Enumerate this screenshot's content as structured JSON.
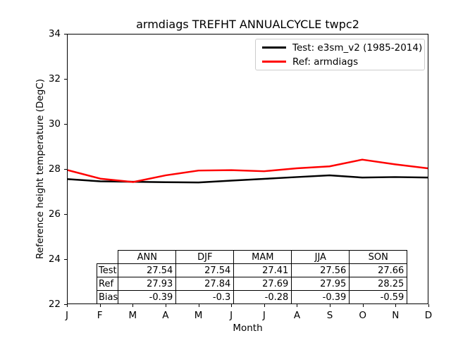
{
  "title": "armdiags TREFHT ANNUALCYCLE twpc2",
  "axes": {
    "xlabel": "Month",
    "ylabel": "Reference height temperature (DegC)",
    "ytick_labels": [
      "22",
      "24",
      "26",
      "28",
      "30",
      "32",
      "34"
    ],
    "ytick_values": [
      22,
      24,
      26,
      28,
      30,
      32,
      34
    ],
    "xtick_labels": [
      "J",
      "F",
      "M",
      "A",
      "M",
      "J",
      "J",
      "A",
      "S",
      "O",
      "N",
      "D"
    ]
  },
  "legend": {
    "entries": [
      {
        "label": "Test: e3sm_v2 (1985-2014)",
        "color": "#000000"
      },
      {
        "label": "Ref: armdiags",
        "color": "#ff0000"
      }
    ]
  },
  "chart_data": {
    "type": "line",
    "title": "armdiags TREFHT ANNUALCYCLE twpc2",
    "xlabel": "Month",
    "ylabel": "Reference height temperature (DegC)",
    "ylim": [
      22,
      34
    ],
    "categories": [
      "J",
      "F",
      "M",
      "A",
      "M",
      "J",
      "J",
      "A",
      "S",
      "O",
      "N",
      "D"
    ],
    "series": [
      {
        "name": "Test: e3sm_v2 (1985-2014)",
        "color": "#000000",
        "values": [
          27.55,
          27.45,
          27.43,
          27.41,
          27.4,
          27.48,
          27.56,
          27.64,
          27.72,
          27.62,
          27.64,
          27.62
        ]
      },
      {
        "name": "Ref: armdiags",
        "color": "#ff0000",
        "values": [
          27.95,
          27.57,
          27.42,
          27.72,
          27.93,
          27.95,
          27.9,
          28.03,
          28.12,
          28.42,
          28.21,
          28.03
        ]
      }
    ],
    "legend_position": "upper right",
    "grid": false
  },
  "table": {
    "columns": [
      "ANN",
      "DJF",
      "MAM",
      "JJA",
      "SON"
    ],
    "rows": [
      {
        "label": "Test",
        "values": [
          "27.54",
          "27.54",
          "27.41",
          "27.56",
          "27.66"
        ]
      },
      {
        "label": "Ref",
        "values": [
          "27.93",
          "27.84",
          "27.69",
          "27.95",
          "28.25"
        ]
      },
      {
        "label": "Bias",
        "values": [
          "-0.39",
          "-0.3",
          "-0.28",
          "-0.39",
          "-0.59"
        ]
      }
    ]
  },
  "colors": {
    "test_line": "#000000",
    "ref_line": "#ff0000",
    "legend_border": "#cccccc",
    "axis": "#000000"
  }
}
